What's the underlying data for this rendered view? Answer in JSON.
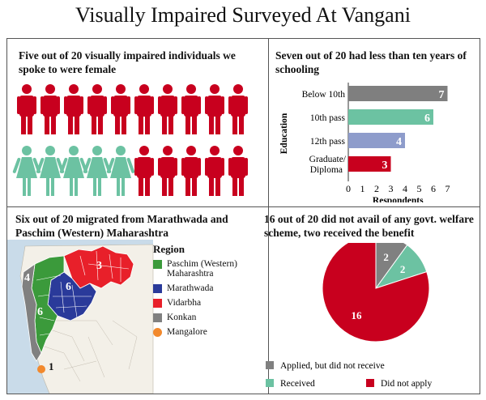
{
  "title": "Visually Impaired Surveyed At Vangani",
  "colors": {
    "red": "#c8001e",
    "teal": "#6cc2a2",
    "grey": "#808080",
    "blue": "#8e9ccb",
    "green": "#3b9a3b",
    "navy": "#2a3a9a",
    "orange": "#f2892d"
  },
  "panels": {
    "gender": {
      "title": "Five out of 20 visually impaired individuals we spoke to were female"
    },
    "education": {
      "title": "Seven out of 20 had less than ten years of schooling"
    },
    "migration": {
      "title": "Six out of 20 migrated from Marathwada and Paschim (Western) Maharashtra"
    },
    "welfare": {
      "title": "16 out of 20 did not avail of any govt. welfare scheme, two received the benefit"
    }
  },
  "pictogram": {
    "male_icon": "male-person-icon",
    "female_icon": "female-person-icon",
    "rows": [
      [
        "male",
        "male",
        "male",
        "male",
        "male",
        "male",
        "male",
        "male",
        "male",
        "male"
      ],
      [
        "female",
        "female",
        "female",
        "female",
        "female",
        "male",
        "male",
        "male",
        "male",
        "male"
      ]
    ]
  },
  "map": {
    "legend_title": "Region",
    "legend": [
      {
        "label": "Paschim (Western) Maharashtra",
        "color": "#3b9a3b",
        "shape": "square"
      },
      {
        "label": "Marathwada",
        "color": "#2a3a9a",
        "shape": "square"
      },
      {
        "label": "Vidarbha",
        "color": "#e8202a",
        "shape": "square"
      },
      {
        "label": "Konkan",
        "color": "#808080",
        "shape": "square"
      },
      {
        "label": "Mangalore",
        "color": "#f2892d",
        "shape": "circle"
      }
    ],
    "counts": {
      "konkan": "4",
      "paschim": "6",
      "marathwada": "6",
      "vidarbha": "3",
      "mangalore": "1"
    }
  },
  "chart_data": [
    {
      "type": "bar",
      "orientation": "horizontal",
      "categories": [
        "Below 10th",
        "10th pass",
        "12th pass",
        "Graduate/ Diploma"
      ],
      "values": [
        7,
        6,
        4,
        3
      ],
      "colors": [
        "#7f7f7f",
        "#6cc2a2",
        "#8e9ccb",
        "#c8001e"
      ],
      "xlabel": "Respondents",
      "ylabel": "Education",
      "xlim": [
        0,
        7
      ],
      "xticks": [
        "0",
        "1",
        "2",
        "3",
        "4",
        "5",
        "6",
        "7"
      ]
    },
    {
      "type": "pie",
      "slices": [
        {
          "label": "Applied, but did not receive",
          "value": 2,
          "color": "#808080"
        },
        {
          "label": "Received",
          "value": 2,
          "color": "#6cc2a2"
        },
        {
          "label": "Did not apply",
          "value": 16,
          "color": "#c8001e"
        }
      ]
    }
  ]
}
